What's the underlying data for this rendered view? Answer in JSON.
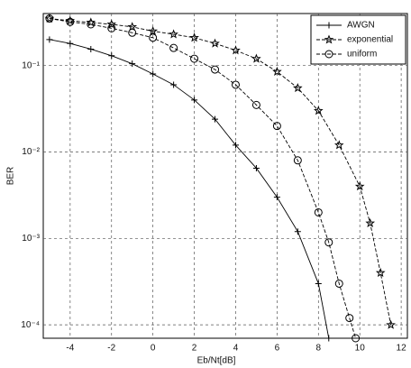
{
  "chart_data": {
    "type": "line",
    "x_label": "Eb/Nt[dB]",
    "y_label": "BER",
    "xlim": [
      -5.3,
      12.3
    ],
    "xticks": [
      -4,
      -2,
      0,
      2,
      4,
      6,
      8,
      10,
      12
    ],
    "ylim": [
      7e-05,
      0.4
    ],
    "ylog": true,
    "yticks": [
      {
        "value": 0.0001,
        "label": "10⁻⁴"
      },
      {
        "value": 0.001,
        "label": "10⁻³"
      },
      {
        "value": 0.01,
        "label": "10⁻²"
      },
      {
        "value": 0.1,
        "label": "10⁻¹"
      }
    ],
    "grid": true,
    "legend": "upper right",
    "series": [
      {
        "name": "AWGN",
        "color": "#000000",
        "marker": "plus",
        "x": [
          -5,
          -4,
          -3,
          -2,
          -1,
          0,
          1,
          2,
          3,
          4,
          5,
          6,
          7,
          8,
          8.5
        ],
        "values": [
          0.2,
          0.18,
          0.155,
          0.13,
          0.105,
          0.08,
          0.06,
          0.04,
          0.024,
          0.012,
          0.0065,
          0.003,
          0.0012,
          0.0003,
          7e-05
        ]
      },
      {
        "name": "exponential",
        "color": "#000000",
        "marker": "star",
        "x": [
          -5,
          -4,
          -3,
          -2,
          -1,
          0,
          1,
          2,
          3,
          4,
          5,
          6,
          7,
          8,
          9,
          10,
          10.5,
          11,
          11.5
        ],
        "values": [
          0.35,
          0.33,
          0.315,
          0.3,
          0.28,
          0.25,
          0.23,
          0.21,
          0.18,
          0.15,
          0.12,
          0.085,
          0.055,
          0.03,
          0.012,
          0.004,
          0.0015,
          0.0004,
          0.0001
        ]
      },
      {
        "name": "uniform",
        "color": "#000000",
        "marker": "circle",
        "x": [
          -5,
          -4,
          -3,
          -2,
          -1,
          0,
          1,
          2,
          3,
          4,
          5,
          6,
          7,
          8,
          8.5,
          9,
          9.5,
          9.8
        ],
        "values": [
          0.35,
          0.32,
          0.3,
          0.27,
          0.24,
          0.21,
          0.16,
          0.12,
          0.09,
          0.06,
          0.035,
          0.02,
          0.008,
          0.002,
          0.0009,
          0.0003,
          0.00012,
          7e-05
        ]
      }
    ]
  }
}
